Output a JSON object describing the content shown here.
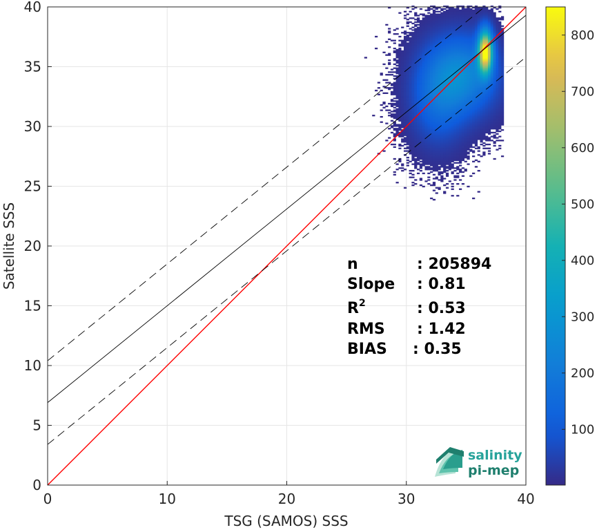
{
  "chart_data": {
    "type": "heatmap",
    "xlabel": "TSG (SAMOS) SSS",
    "ylabel": "Satellite SSS",
    "xlim": [
      0,
      40
    ],
    "ylim": [
      0,
      40
    ],
    "xticks": [
      0,
      10,
      20,
      30,
      40
    ],
    "yticks": [
      0,
      5,
      10,
      15,
      20,
      25,
      30,
      35,
      40
    ],
    "grid": true,
    "colorbar": {
      "range": [
        1,
        850
      ],
      "ticks": [
        100,
        200,
        300,
        400,
        500,
        600,
        700,
        800
      ],
      "colormap": "parula",
      "placement": "right"
    },
    "density_clusters": [
      {
        "x_center": 34.5,
        "y_center": 34.3,
        "x_spread": 2.0,
        "y_spread": 2.2,
        "weight": 0.55,
        "count_peak": 250
      },
      {
        "x_center": 36.5,
        "y_center": 36.2,
        "x_spread": 0.4,
        "y_spread": 1.2,
        "weight": 0.3,
        "count_peak": 820
      },
      {
        "x_center": 32.5,
        "y_center": 32.0,
        "x_spread": 1.5,
        "y_spread": 2.5,
        "weight": 0.15,
        "count_peak": 120
      }
    ],
    "lines": [
      {
        "name": "1:1",
        "slope": 1.0,
        "intercept": 0.0,
        "color": "#ff0000",
        "style": "solid"
      },
      {
        "name": "fit",
        "slope": 0.81,
        "intercept": 6.9,
        "color": "#000000",
        "style": "solid"
      },
      {
        "name": "fit + sd",
        "slope": 0.81,
        "intercept": 10.4,
        "color": "#000000",
        "style": "dashed"
      },
      {
        "name": "fit - sd",
        "slope": 0.81,
        "intercept": 3.4,
        "color": "#000000",
        "style": "dashed"
      }
    ],
    "stats": [
      {
        "label": "n",
        "value": ": 205894"
      },
      {
        "label": "Slope",
        "value": ": 0.81"
      },
      {
        "label": "R",
        "superscript": "2",
        "value": ": 0.53"
      },
      {
        "label": "RMS",
        "value": ": 1.42"
      },
      {
        "label": "BIAS",
        "value": ": 0.35"
      }
    ]
  },
  "logo": {
    "line1": "salinity",
    "line2": "pi-mep",
    "color1": "#27a39b",
    "color2": "#1f7f6e"
  }
}
